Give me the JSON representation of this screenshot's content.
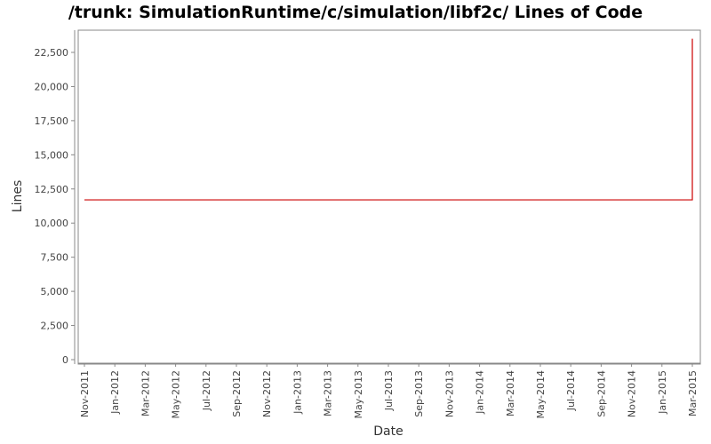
{
  "chart_data": {
    "type": "line",
    "title": "/trunk: SimulationRuntime/c/simulation/libf2c/ Lines of Code",
    "x_label": "Date",
    "y_label": "Lines",
    "x": [
      "2011-11",
      "2015-03",
      "2015-03"
    ],
    "series": [
      {
        "name": "Lines",
        "color": "#cc0000",
        "values": [
          11700,
          11700,
          23500
        ]
      }
    ],
    "xlim": [
      "2011-11",
      "2015-03"
    ],
    "xticks": [
      {
        "value": "2011-11",
        "label": "Nov-2011"
      },
      {
        "value": "2012-01",
        "label": "Jan-2012"
      },
      {
        "value": "2012-03",
        "label": "Mar-2012"
      },
      {
        "value": "2012-05",
        "label": "May-2012"
      },
      {
        "value": "2012-07",
        "label": "Jul-2012"
      },
      {
        "value": "2012-09",
        "label": "Sep-2012"
      },
      {
        "value": "2012-11",
        "label": "Nov-2012"
      },
      {
        "value": "2013-01",
        "label": "Jan-2013"
      },
      {
        "value": "2013-03",
        "label": "Mar-2013"
      },
      {
        "value": "2013-05",
        "label": "May-2013"
      },
      {
        "value": "2013-07",
        "label": "Jul-2013"
      },
      {
        "value": "2013-09",
        "label": "Sep-2013"
      },
      {
        "value": "2013-11",
        "label": "Nov-2013"
      },
      {
        "value": "2014-01",
        "label": "Jan-2014"
      },
      {
        "value": "2014-03",
        "label": "Mar-2014"
      },
      {
        "value": "2014-05",
        "label": "May-2014"
      },
      {
        "value": "2014-07",
        "label": "Jul-2014"
      },
      {
        "value": "2014-09",
        "label": "Sep-2014"
      },
      {
        "value": "2014-11",
        "label": "Nov-2014"
      },
      {
        "value": "2015-01",
        "label": "Jan-2015"
      },
      {
        "value": "2015-03",
        "label": "Mar-2015"
      }
    ],
    "ylim": [
      -325,
      24125
    ],
    "yticks": [
      0,
      {
        "value": 2500,
        "label": "2,500"
      },
      {
        "value": 5000,
        "label": "5,000"
      },
      {
        "value": 7500,
        "label": "7,500"
      },
      {
        "value": 10000,
        "label": "10,000"
      },
      {
        "value": 12500,
        "label": "12,500"
      },
      {
        "value": 15000,
        "label": "15,000"
      },
      {
        "value": 17500,
        "label": "17,500"
      },
      {
        "value": 20000,
        "label": "20,000"
      },
      {
        "value": 22500,
        "label": "22,500"
      }
    ],
    "grid": false,
    "legend": false
  }
}
